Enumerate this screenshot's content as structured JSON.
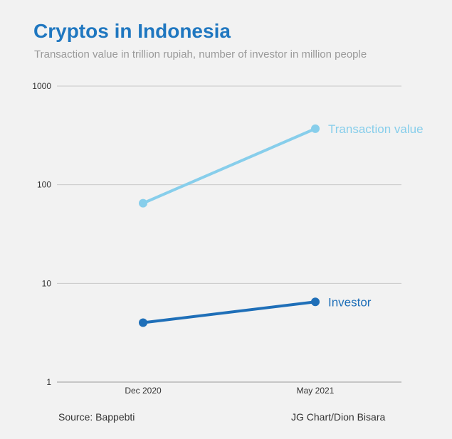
{
  "chart_data": {
    "type": "line",
    "title": "Cryptos in Indonesia",
    "subtitle": "Transaction value in trillion rupiah, number of investor in million people",
    "categories": [
      "Dec 2020",
      "May 2021"
    ],
    "y_scale": "log",
    "ylim": [
      1,
      1000
    ],
    "y_ticks": [
      "1",
      "10",
      "100",
      "1000"
    ],
    "y_tick_values": [
      1,
      10,
      100,
      1000
    ],
    "grid": true,
    "series": [
      {
        "name": "Transaction value",
        "values": [
          65,
          370
        ],
        "color": "#87ceeb"
      },
      {
        "name": "Investor",
        "values": [
          4,
          6.5
        ],
        "color": "#1f6fb8"
      }
    ]
  },
  "footer": {
    "source": "Source: Bappebti",
    "credit": "JG Chart/Dion Bisara"
  }
}
